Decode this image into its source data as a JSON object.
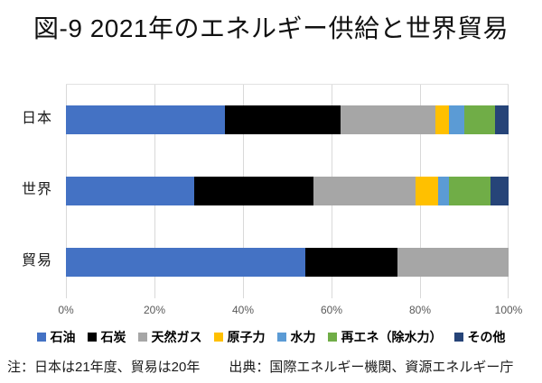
{
  "chart_data": {
    "type": "bar",
    "orientation": "horizontal-stacked",
    "title": "図-9 2021年のエネルギー供給と世界貿易",
    "categories": [
      "日本",
      "世界",
      "貿易"
    ],
    "series": [
      {
        "name": "石油",
        "color": "#4472C4",
        "values": [
          36,
          29,
          54
        ]
      },
      {
        "name": "石炭",
        "color": "#000000",
        "values": [
          26,
          27,
          21
        ]
      },
      {
        "name": "天然ガス",
        "color": "#A6A6A6",
        "values": [
          21.5,
          23,
          25
        ]
      },
      {
        "name": "原子力",
        "color": "#FFC000",
        "values": [
          3,
          5,
          0
        ]
      },
      {
        "name": "水力",
        "color": "#5B9BD5",
        "values": [
          3.5,
          2.5,
          0
        ]
      },
      {
        "name": "再エネ（除水力）",
        "color": "#70AD47",
        "values": [
          7,
          9.5,
          0
        ]
      },
      {
        "name": "その他",
        "color": "#264478",
        "values": [
          3,
          4,
          0
        ]
      }
    ],
    "x_ticks": [
      "0%",
      "20%",
      "40%",
      "60%",
      "80%",
      "100%"
    ],
    "xlim": [
      0,
      100
    ],
    "grid": "vertical",
    "legend_position": "bottom"
  },
  "note": {
    "left": "注：日本は21年度、貿易は20年",
    "right": "出典：国際エネルギー機関、資源エネルギー庁"
  },
  "colors": {
    "gridline": "#D9D9D9",
    "tick_label": "#595959",
    "text": "#000000"
  }
}
